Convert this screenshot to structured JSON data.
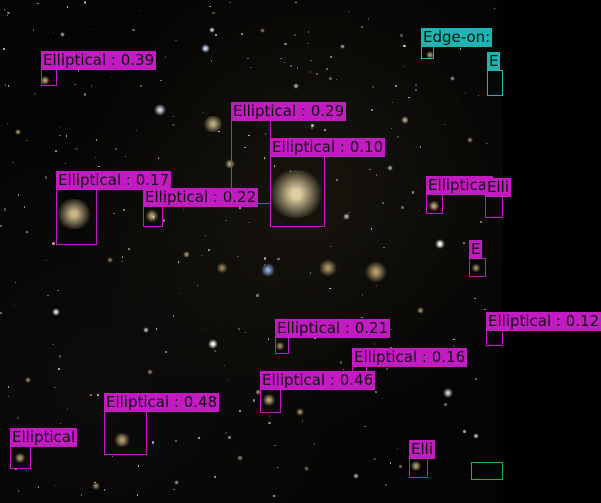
{
  "image": {
    "title": "",
    "colors": {
      "elliptical": "#c21bc2",
      "edge_on": "#1fb3b3",
      "other": "#22b14c",
      "label_text": "#111111"
    }
  },
  "detections": [
    {
      "label": "Elliptical : 0.39",
      "class": "elliptical"
    },
    {
      "label": "Elliptical : 0.29",
      "class": "elliptical"
    },
    {
      "label": "Elliptical : 0.10",
      "class": "elliptical"
    },
    {
      "label": "Elliptical : 0.17",
      "class": "elliptical"
    },
    {
      "label": "Elliptical : 0.22",
      "class": "elliptical"
    },
    {
      "label": "Edge-on:",
      "class": "edge_on"
    },
    {
      "label": "E",
      "class": "edge_on"
    },
    {
      "label": "Elliptical",
      "class": "elliptical"
    },
    {
      "label": "Elli",
      "class": "elliptical"
    },
    {
      "label": "E",
      "class": "elliptical"
    },
    {
      "label": "Elliptical : 0.12",
      "class": "elliptical"
    },
    {
      "label": "Elliptical : 0.21",
      "class": "elliptical"
    },
    {
      "label": "Elliptical : 0.16",
      "class": "elliptical"
    },
    {
      "label": "Elliptical : 0.46",
      "class": "elliptical"
    },
    {
      "label": "Elliptical : 0.48",
      "class": "elliptical"
    },
    {
      "label": "Elliptical",
      "class": "elliptical"
    },
    {
      "label": "Elli",
      "class": "elliptical"
    },
    {
      "label": "",
      "class": "other"
    }
  ]
}
